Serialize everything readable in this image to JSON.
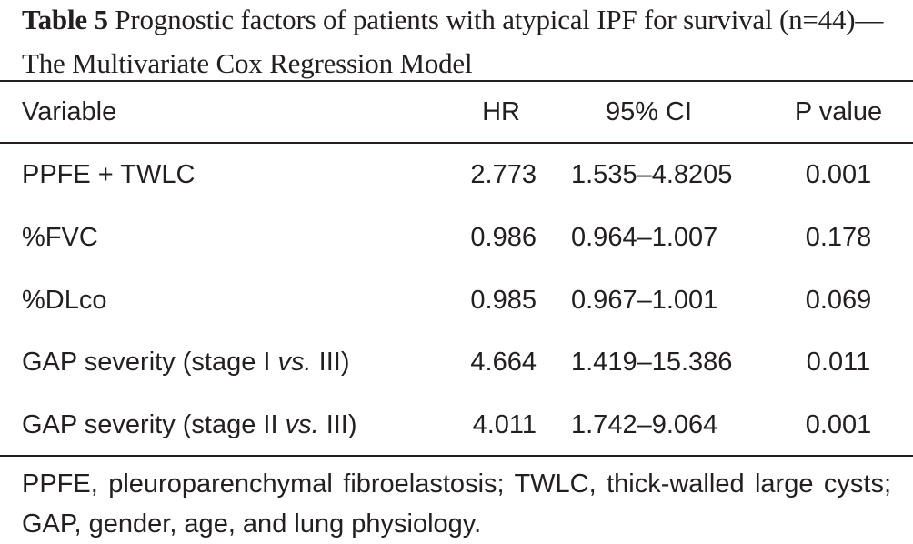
{
  "caption": {
    "label": "Table 5",
    "text": " Prognostic factors of patients with atypical IPF for survival (n=44)—The Multivariate Cox Regression Model"
  },
  "table": {
    "headers": [
      "Variable",
      "HR",
      "95% CI",
      "P value"
    ],
    "rows": [
      {
        "variable_pre": "PPFE + TWLC",
        "variable_em": "",
        "variable_post": "",
        "hr": "2.773",
        "ci": "1.535–4.8205",
        "p": "0.001"
      },
      {
        "variable_pre": "%FVC",
        "variable_em": "",
        "variable_post": "",
        "hr": "0.986",
        "ci": "0.964–1.007",
        "p": "0.178"
      },
      {
        "variable_pre": "%DLco",
        "variable_em": "",
        "variable_post": "",
        "hr": "0.985",
        "ci": "0.967–1.001",
        "p": "0.069"
      },
      {
        "variable_pre": "GAP severity (stage I ",
        "variable_em": "vs.",
        "variable_post": " III)",
        "hr": "4.664",
        "ci": "1.419–15.386",
        "p": "0.011"
      },
      {
        "variable_pre": "GAP severity (stage II ",
        "variable_em": "vs.",
        "variable_post": " III)",
        "hr": "4.011",
        "ci": "1.742–9.064",
        "p": "0.001"
      }
    ]
  },
  "footnote": "PPFE, pleuroparenchymal fibroelastosis; TWLC, thick-walled large cysts; GAP, gender, age, and lung physiology."
}
